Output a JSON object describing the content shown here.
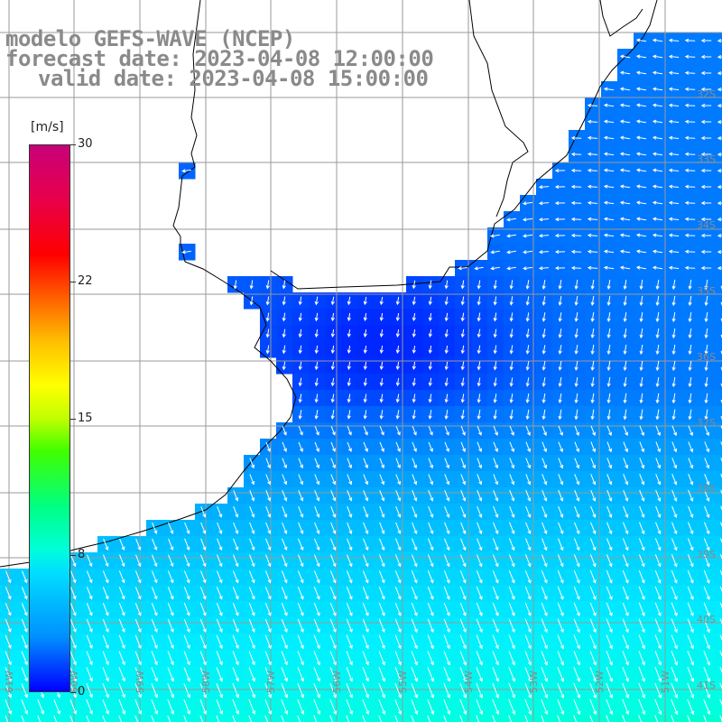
{
  "title": {
    "line1": "modelo GEFS-WAVE (NCEP)",
    "line2": "forecast date: 2023-04-08 12:00:00",
    "line3": "valid date: 2023-04-08 15:00:00"
  },
  "colorbar": {
    "unit": "[m/s]",
    "min": 0,
    "max": 30,
    "ticks": [
      {
        "label": "30",
        "value": 30
      },
      {
        "label": "22",
        "value": 22.5
      },
      {
        "label": "15",
        "value": 15
      },
      {
        "label": "8",
        "value": 7.5
      },
      {
        "label": "0",
        "value": 0
      }
    ]
  },
  "map": {
    "lat_labels": [
      "32S",
      "33S",
      "34S",
      "35S",
      "36S",
      "37S",
      "38S",
      "39S",
      "40S",
      "41S"
    ],
    "lon_labels": [
      "61W",
      "60W",
      "59W",
      "58W",
      "57W",
      "56W",
      "55W",
      "54W",
      "53W",
      "52W",
      "51W"
    ],
    "colors": {
      "land": "#ffffff",
      "grid": "#9a9a9a",
      "coast": "#000000",
      "arrow": "#ffffff",
      "label": "#8a8a8a"
    }
  }
}
